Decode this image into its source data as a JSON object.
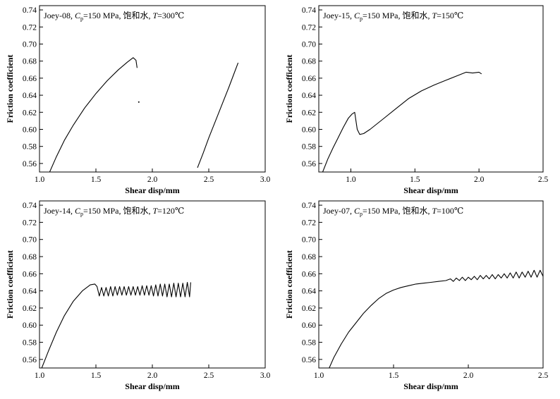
{
  "chart_data": [
    {
      "type": "scatter",
      "title": "Joey-08, Cp=150 MPa, 饱和水, T=300℃",
      "title_parts": {
        "sample": "Joey-08, ",
        "c_symbol": "C",
        "c_sub": "p",
        "pressure": "=150 MPa, 饱和水, ",
        "t_symbol": "T",
        "temperature": "=300℃"
      },
      "xlabel": "Shear disp/mm",
      "ylabel": "Friction coefficient",
      "xlim": [
        1.0,
        3.0
      ],
      "ylim": [
        0.55,
        0.745
      ],
      "xticks": [
        1.0,
        1.5,
        2.0,
        2.5,
        3.0
      ],
      "xtick_labels": [
        "1.0",
        "1.5",
        "2.0",
        "2.5",
        "3.0"
      ],
      "yticks": [
        0.56,
        0.58,
        0.6,
        0.62,
        0.64,
        0.66,
        0.68,
        0.7,
        0.72,
        0.74
      ],
      "ytick_labels": [
        "0.56",
        "0.58",
        "0.60",
        "0.62",
        "0.64",
        "0.66",
        "0.68",
        "0.70",
        "0.72",
        "0.74"
      ],
      "series": [
        {
          "segments": [
            {
              "x": [
                1.09,
                1.15,
                1.22,
                1.3,
                1.4,
                1.5,
                1.6,
                1.7,
                1.78,
                1.83,
                1.855,
                1.865
              ],
              "y": [
                0.55,
                0.568,
                0.587,
                0.605,
                0.625,
                0.642,
                0.657,
                0.67,
                0.679,
                0.684,
                0.681,
                0.672
              ]
            },
            {
              "x": [
                1.88
              ],
              "y": [
                0.632
              ]
            },
            {
              "x": [
                2.4,
                2.45,
                2.5,
                2.56,
                2.62,
                2.68,
                2.72,
                2.76
              ],
              "y": [
                0.555,
                0.572,
                0.59,
                0.61,
                0.63,
                0.65,
                0.664,
                0.678
              ]
            }
          ]
        }
      ]
    },
    {
      "type": "scatter",
      "title": "Joey-15, Cp=150 MPa, 饱和水, T=150℃",
      "title_parts": {
        "sample": "Joey-15, ",
        "c_symbol": "C",
        "c_sub": "p",
        "pressure": "=150 MPa, 饱和水, ",
        "t_symbol": "T",
        "temperature": "=150℃"
      },
      "xlabel": "Shear disp/mm",
      "ylabel": "Friction coefficient",
      "xlim": [
        0.75,
        2.5
      ],
      "ylim": [
        0.55,
        0.745
      ],
      "xticks": [
        1.0,
        1.5,
        2.0,
        2.5
      ],
      "xtick_labels": [
        "1.0",
        "1.5",
        "2.0",
        "2.5"
      ],
      "yticks": [
        0.56,
        0.58,
        0.6,
        0.62,
        0.64,
        0.66,
        0.68,
        0.7,
        0.72,
        0.74
      ],
      "ytick_labels": [
        "0.56",
        "0.58",
        "0.60",
        "0.62",
        "0.64",
        "0.66",
        "0.68",
        "0.70",
        "0.72",
        "0.74"
      ],
      "series": [
        {
          "segments": [
            {
              "x": [
                0.78,
                0.82,
                0.86,
                0.9,
                0.94,
                0.98,
                1.01,
                1.03,
                1.05,
                1.07,
                1.1,
                1.15,
                1.25,
                1.35,
                1.45,
                1.55,
                1.65,
                1.75,
                1.85,
                1.9,
                1.95,
                2.0,
                2.02
              ],
              "y": [
                0.55,
                0.565,
                0.578,
                0.59,
                0.602,
                0.613,
                0.618,
                0.62,
                0.6,
                0.594,
                0.595,
                0.6,
                0.612,
                0.624,
                0.636,
                0.645,
                0.652,
                0.658,
                0.664,
                0.667,
                0.666,
                0.667,
                0.665
              ]
            }
          ]
        }
      ]
    },
    {
      "type": "scatter",
      "title": "Joey-14, Cp=150 MPa, 饱和水, T=120℃",
      "title_parts": {
        "sample": "Joey-14, ",
        "c_symbol": "C",
        "c_sub": "p",
        "pressure": "=150 MPa, 饱和水, ",
        "t_symbol": "T",
        "temperature": "=120℃"
      },
      "xlabel": "Shear disp/mm",
      "ylabel": "Friction coefficient",
      "xlim": [
        1.0,
        3.0
      ],
      "ylim": [
        0.55,
        0.745
      ],
      "xticks": [
        1.0,
        1.5,
        2.0,
        2.5,
        3.0
      ],
      "xtick_labels": [
        "1.0",
        "1.5",
        "2.0",
        "2.5",
        "3.0"
      ],
      "yticks": [
        0.56,
        0.58,
        0.6,
        0.62,
        0.64,
        0.66,
        0.68,
        0.7,
        0.72,
        0.74
      ],
      "ytick_labels": [
        "0.56",
        "0.58",
        "0.60",
        "0.62",
        "0.64",
        "0.66",
        "0.68",
        "0.70",
        "0.72",
        "0.74"
      ],
      "series": [
        {
          "segments": [
            {
              "x": [
                1.02,
                1.08,
                1.15,
                1.22,
                1.3,
                1.38,
                1.45,
                1.49,
                1.51,
                1.53,
                1.55,
                1.57,
                1.59,
                1.61,
                1.63,
                1.65,
                1.67,
                1.69,
                1.71,
                1.73,
                1.75,
                1.77,
                1.79,
                1.81,
                1.83,
                1.85,
                1.87,
                1.89,
                1.91,
                1.93,
                1.95,
                1.97,
                1.99,
                2.01,
                2.03,
                2.05,
                2.07,
                2.09,
                2.11,
                2.13,
                2.15,
                2.17,
                2.19,
                2.21,
                2.23,
                2.25,
                2.27,
                2.29,
                2.31,
                2.33,
                2.34
              ],
              "y": [
                0.55,
                0.57,
                0.592,
                0.611,
                0.628,
                0.64,
                0.647,
                0.648,
                0.645,
                0.634,
                0.644,
                0.634,
                0.644,
                0.634,
                0.645,
                0.634,
                0.645,
                0.635,
                0.645,
                0.635,
                0.645,
                0.635,
                0.645,
                0.635,
                0.645,
                0.635,
                0.645,
                0.635,
                0.646,
                0.635,
                0.646,
                0.635,
                0.646,
                0.634,
                0.647,
                0.634,
                0.648,
                0.634,
                0.648,
                0.633,
                0.648,
                0.633,
                0.649,
                0.633,
                0.649,
                0.633,
                0.649,
                0.633,
                0.65,
                0.633,
                0.65
              ]
            }
          ]
        }
      ]
    },
    {
      "type": "scatter",
      "title": "Joey-07, Cp=150 MPa, 饱和水, T=100℃",
      "title_parts": {
        "sample": "Joey-07, ",
        "c_symbol": "C",
        "c_sub": "p",
        "pressure": "=150 MPa, 饱和水, ",
        "t_symbol": "T",
        "temperature": "=100℃"
      },
      "xlabel": "Shear disp/mm",
      "ylabel": "Friction coefficient",
      "xlim": [
        1.0,
        2.5
      ],
      "ylim": [
        0.55,
        0.745
      ],
      "xticks": [
        1.0,
        1.5,
        2.0,
        2.5
      ],
      "xtick_labels": [
        "1.0",
        "1.5",
        "2.0",
        "2.5"
      ],
      "yticks": [
        0.56,
        0.58,
        0.6,
        0.62,
        0.64,
        0.66,
        0.68,
        0.7,
        0.72,
        0.74
      ],
      "ytick_labels": [
        "0.56",
        "0.58",
        "0.60",
        "0.62",
        "0.64",
        "0.66",
        "0.68",
        "0.70",
        "0.72",
        "0.74"
      ],
      "series": [
        {
          "segments": [
            {
              "x": [
                1.07,
                1.1,
                1.15,
                1.2,
                1.25,
                1.3,
                1.35,
                1.4,
                1.45,
                1.5,
                1.55,
                1.6,
                1.65,
                1.7,
                1.75,
                1.8,
                1.85,
                1.88,
                1.9,
                1.92,
                1.94,
                1.96,
                1.98,
                2.0,
                2.02,
                2.04,
                2.06,
                2.08,
                2.1,
                2.12,
                2.14,
                2.16,
                2.18,
                2.2,
                2.22,
                2.24,
                2.26,
                2.28,
                2.3,
                2.32,
                2.34,
                2.36,
                2.38,
                2.4,
                2.42,
                2.44,
                2.46,
                2.48,
                2.5
              ],
              "y": [
                0.55,
                0.562,
                0.578,
                0.592,
                0.603,
                0.614,
                0.623,
                0.631,
                0.637,
                0.641,
                0.644,
                0.646,
                0.648,
                0.649,
                0.65,
                0.651,
                0.652,
                0.654,
                0.651,
                0.655,
                0.652,
                0.656,
                0.652,
                0.656,
                0.653,
                0.657,
                0.653,
                0.658,
                0.654,
                0.658,
                0.654,
                0.659,
                0.654,
                0.659,
                0.655,
                0.66,
                0.655,
                0.661,
                0.655,
                0.662,
                0.655,
                0.662,
                0.656,
                0.663,
                0.656,
                0.664,
                0.656,
                0.664,
                0.657
              ]
            }
          ]
        }
      ]
    }
  ]
}
